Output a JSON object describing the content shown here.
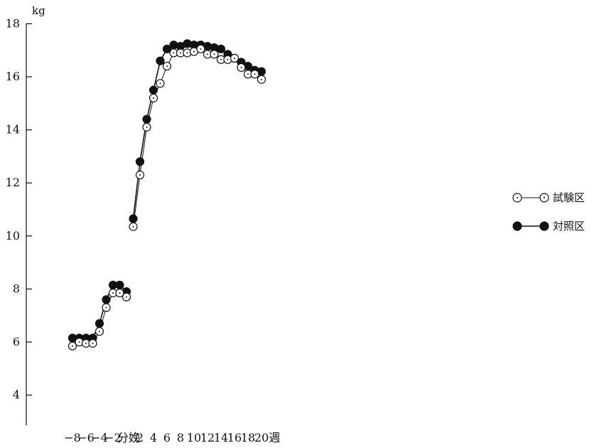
{
  "chart_data": {
    "type": "line",
    "ylabel": "kg",
    "ylim": [
      4,
      18
    ],
    "yticks": [
      4,
      6,
      8,
      10,
      12,
      14,
      16,
      18
    ],
    "x_tick_labels": [
      {
        "x": -8,
        "label": "−8"
      },
      {
        "x": -6,
        "label": "−6"
      },
      {
        "x": -4,
        "label": "−4"
      },
      {
        "x": -2,
        "label": "−2"
      },
      {
        "x": 0,
        "label": "分娩"
      },
      {
        "x": 2,
        "label": "2"
      },
      {
        "x": 4,
        "label": "4"
      },
      {
        "x": 6,
        "label": "6"
      },
      {
        "x": 8,
        "label": "8"
      },
      {
        "x": 10,
        "label": "10"
      },
      {
        "x": 12,
        "label": "12"
      },
      {
        "x": 14,
        "label": "14"
      },
      {
        "x": 16,
        "label": "16"
      },
      {
        "x": 18,
        "label": "18"
      },
      {
        "x": 20,
        "label": "20週"
      }
    ],
    "grid": false,
    "legend_position": "right",
    "series": [
      {
        "name": "試験区",
        "marker": "open-circle",
        "segments": [
          {
            "x": [
              -8,
              -7,
              -6,
              -5,
              -4,
              -3,
              -2,
              -1,
              0
            ],
            "y": [
              5.85,
              6.0,
              5.95,
              5.95,
              6.4,
              7.3,
              7.85,
              7.85,
              7.7
            ]
          },
          {
            "x": [
              1,
              2,
              3,
              4,
              5,
              6,
              7,
              8,
              9,
              10,
              11,
              12,
              13,
              14,
              15,
              16,
              17,
              18,
              19,
              20
            ],
            "y": [
              10.35,
              12.3,
              14.1,
              15.2,
              15.75,
              16.4,
              16.9,
              16.9,
              16.9,
              16.95,
              17.05,
              16.85,
              16.85,
              16.65,
              16.65,
              16.7,
              16.35,
              16.1,
              16.1,
              15.9
            ]
          }
        ]
      },
      {
        "name": "対照区",
        "marker": "filled-circle",
        "segments": [
          {
            "x": [
              -8,
              -7,
              -6,
              -5,
              -4,
              -3,
              -2,
              -1,
              0
            ],
            "y": [
              6.15,
              6.15,
              6.15,
              6.15,
              6.7,
              7.6,
              8.15,
              8.15,
              7.9
            ]
          },
          {
            "x": [
              1,
              2,
              3,
              4,
              5,
              6,
              7,
              8,
              9,
              10,
              11,
              12,
              13,
              14,
              15,
              16,
              17,
              18,
              19,
              20
            ],
            "y": [
              10.65,
              12.8,
              14.4,
              15.5,
              16.6,
              17.05,
              17.2,
              17.15,
              17.25,
              17.2,
              17.2,
              17.15,
              17.1,
              17.05,
              16.85,
              16.7,
              16.55,
              16.4,
              16.25,
              16.2
            ]
          }
        ]
      }
    ]
  }
}
